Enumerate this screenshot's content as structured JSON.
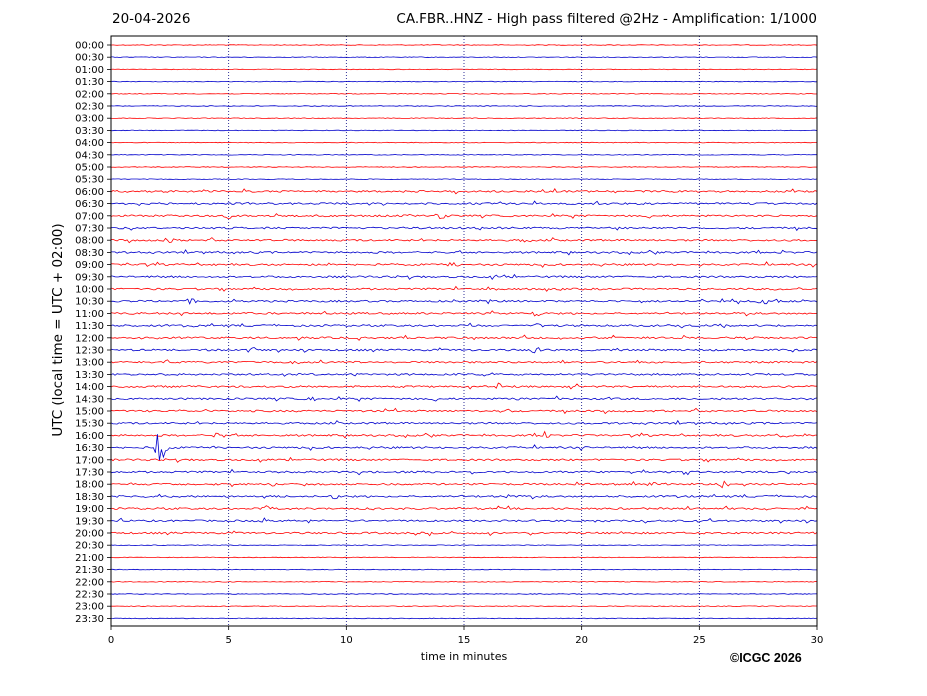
{
  "header": {
    "date": "20-04-2026",
    "title": "CA.FBR..HNZ - High pass filtered @2Hz - Amplification: 1/1000"
  },
  "footer": {
    "copyright": "©ICGC 2026"
  },
  "chart_data": {
    "type": "line",
    "subtype": "helicorder",
    "title": "CA.FBR..HNZ - High pass filtered @2Hz - Amplification: 1/1000",
    "date": "20-04-2026",
    "xlabel": "time in minutes",
    "ylabel": "UTC (local time = UTC + 02:00)",
    "xlim": [
      0,
      30
    ],
    "x_ticks": [
      0,
      5,
      10,
      15,
      20,
      25,
      30
    ],
    "x_tick_labels": [
      "0",
      "5",
      "10",
      "15",
      "20",
      "25",
      "30"
    ],
    "vertical_gridlines_at": [
      5,
      10,
      15,
      20,
      25
    ],
    "grid_style": "dotted",
    "row_labels": [
      "00:00",
      "00:30",
      "01:00",
      "01:30",
      "02:00",
      "02:30",
      "03:00",
      "03:30",
      "04:00",
      "04:30",
      "05:00",
      "05:30",
      "06:00",
      "06:30",
      "07:00",
      "07:30",
      "08:00",
      "08:30",
      "09:00",
      "09:30",
      "10:00",
      "10:30",
      "11:00",
      "11:30",
      "12:00",
      "12:30",
      "13:00",
      "13:30",
      "14:00",
      "14:30",
      "15:00",
      "15:30",
      "16:00",
      "16:30",
      "17:00",
      "17:30",
      "18:00",
      "18:30",
      "19:00",
      "19:30",
      "20:00",
      "20:30",
      "21:00",
      "21:30",
      "22:00",
      "22:30",
      "23:00",
      "23:30"
    ],
    "trace_colors": [
      "#ff0000",
      "#0000cc"
    ],
    "colors": {
      "red": "#ff0000",
      "blue": "#0000cc",
      "grid": "#000080"
    },
    "noisy_row_range": [
      "06:00",
      "20:00"
    ],
    "events": [
      {
        "row": "07:00",
        "minute": 5.0,
        "amplitude": 3
      },
      {
        "row": "07:00",
        "minute": 14.0,
        "amplitude": 3
      },
      {
        "row": "08:00",
        "minute": 2.5,
        "amplitude": 3
      },
      {
        "row": "08:00",
        "minute": 17.6,
        "amplitude": 3
      },
      {
        "row": "09:00",
        "minute": 0.8,
        "amplitude": 3
      },
      {
        "row": "09:00",
        "minute": 14.5,
        "amplitude": 3
      },
      {
        "row": "09:30",
        "minute": 16.5,
        "amplitude": 4
      },
      {
        "row": "10:00",
        "minute": 16.2,
        "amplitude": 3
      },
      {
        "row": "10:30",
        "minute": 3.4,
        "amplitude": 3
      },
      {
        "row": "10:30",
        "minute": 16.0,
        "amplitude": 3
      },
      {
        "row": "10:30",
        "minute": 27.7,
        "amplitude": 4
      },
      {
        "row": "11:00",
        "minute": 18.0,
        "amplitude": 3
      },
      {
        "row": "11:30",
        "minute": 3.5,
        "amplitude": 3
      },
      {
        "row": "11:30",
        "minute": 18.2,
        "amplitude": 3
      },
      {
        "row": "12:30",
        "minute": 6.0,
        "amplitude": 3
      },
      {
        "row": "12:30",
        "minute": 18.0,
        "amplitude": 3
      },
      {
        "row": "13:00",
        "minute": 2.5,
        "amplitude": 3
      },
      {
        "row": "14:00",
        "minute": 2.0,
        "amplitude": 3
      },
      {
        "row": "14:00",
        "minute": 16.5,
        "amplitude": 4
      },
      {
        "row": "14:30",
        "minute": 8.6,
        "amplitude": 4
      },
      {
        "row": "14:30",
        "minute": 17.4,
        "amplitude": 3
      },
      {
        "row": "15:00",
        "minute": 16.8,
        "amplitude": 3
      },
      {
        "row": "16:00",
        "minute": 4.6,
        "amplitude": 3
      },
      {
        "row": "16:00",
        "minute": 18.5,
        "amplitude": 4
      },
      {
        "row": "16:00",
        "minute": 28.5,
        "amplitude": 3
      },
      {
        "row": "16:30",
        "minute": 2.1,
        "amplitude": 26
      },
      {
        "row": "18:00",
        "minute": 23.0,
        "amplitude": 3
      },
      {
        "row": "18:00",
        "minute": 26.0,
        "amplitude": 5
      },
      {
        "row": "18:30",
        "minute": 9.5,
        "amplitude": 3
      },
      {
        "row": "18:30",
        "minute": 17.0,
        "amplitude": 3
      },
      {
        "row": "19:00",
        "minute": 6.6,
        "amplitude": 4
      },
      {
        "row": "19:30",
        "minute": 6.5,
        "amplitude": 3
      }
    ]
  }
}
